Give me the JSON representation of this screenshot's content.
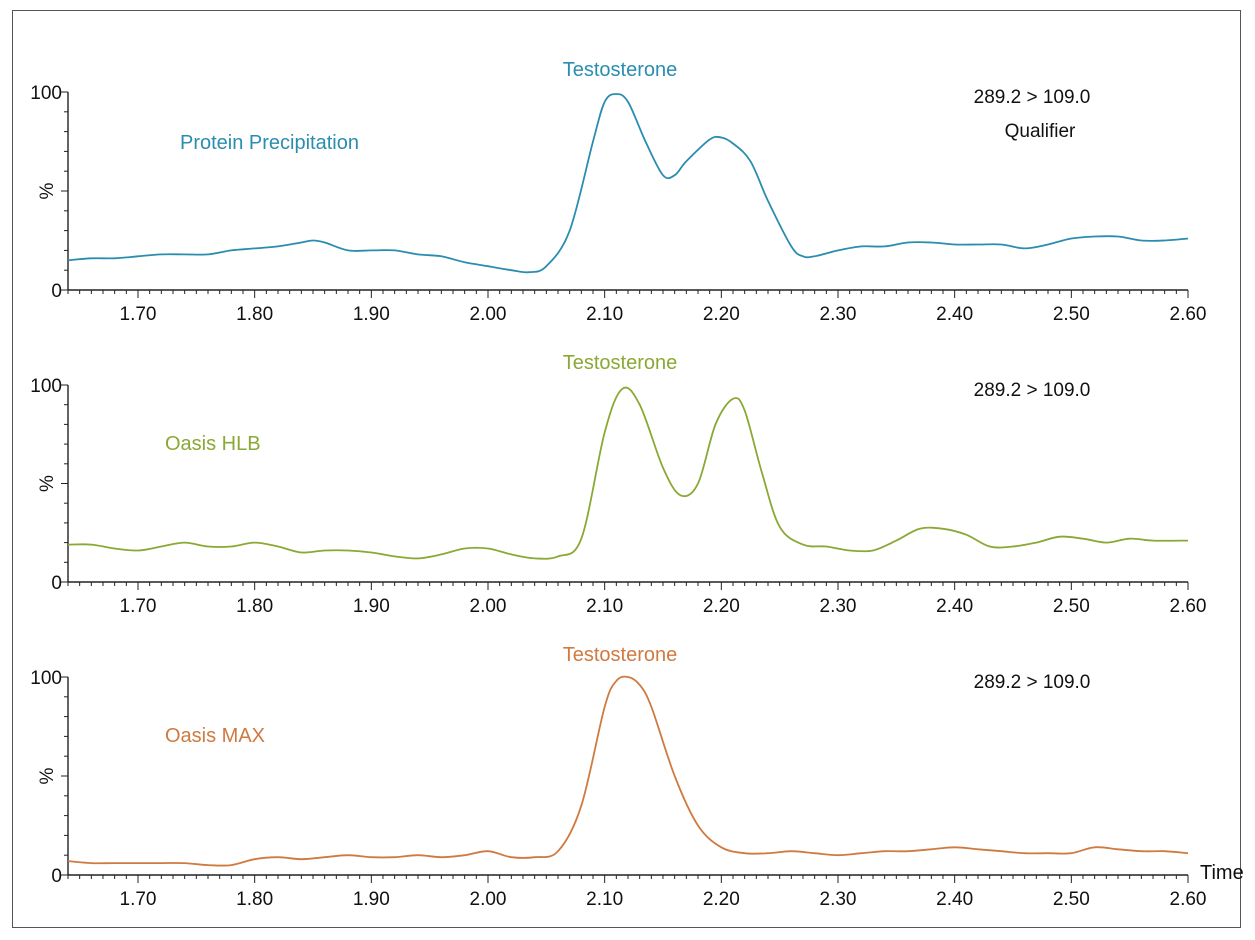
{
  "chart_data": [
    {
      "type": "line",
      "peak_label": "Testosterone",
      "method_label": "Protein Precipitation",
      "transition": "289.2 > 109.0",
      "transition_sub": "Qualifier",
      "ylabel": "%",
      "xlabel": "",
      "color": "#2a8db0",
      "xlim": [
        1.64,
        2.6
      ],
      "ylim": [
        0,
        100
      ],
      "yticks": [
        "0",
        "100"
      ],
      "xticks": [
        "1.70",
        "1.80",
        "1.90",
        "2.00",
        "2.10",
        "2.20",
        "2.30",
        "2.40",
        "2.50",
        "2.60"
      ],
      "x": [
        1.64,
        1.66,
        1.68,
        1.7,
        1.72,
        1.74,
        1.76,
        1.78,
        1.8,
        1.82,
        1.84,
        1.85,
        1.86,
        1.88,
        1.9,
        1.92,
        1.94,
        1.96,
        1.98,
        2.0,
        2.02,
        2.035,
        2.05,
        2.07,
        2.09,
        2.1,
        2.11,
        2.12,
        2.135,
        2.15,
        2.16,
        2.17,
        2.19,
        2.2,
        2.21,
        2.225,
        2.24,
        2.26,
        2.27,
        2.28,
        2.3,
        2.32,
        2.34,
        2.36,
        2.38,
        2.4,
        2.42,
        2.44,
        2.46,
        2.48,
        2.5,
        2.52,
        2.54,
        2.56,
        2.58,
        2.6
      ],
      "values": [
        15,
        16,
        16,
        17,
        18,
        18,
        18,
        20,
        21,
        22,
        24,
        25,
        24,
        20,
        20,
        20,
        18,
        17,
        14,
        12,
        10,
        9,
        12,
        30,
        75,
        95,
        99,
        95,
        75,
        58,
        58,
        65,
        76,
        77,
        74,
        65,
        45,
        22,
        17,
        17,
        20,
        22,
        22,
        24,
        24,
        23,
        23,
        23,
        21,
        23,
        26,
        27,
        27,
        25,
        25,
        26
      ]
    },
    {
      "type": "line",
      "peak_label": "Testosterone",
      "method_label": "Oasis HLB",
      "transition": "289.2 > 109.0",
      "ylabel": "%",
      "xlabel": "",
      "color": "#8aa834",
      "xlim": [
        1.64,
        2.6
      ],
      "ylim": [
        0,
        100
      ],
      "yticks": [
        "0",
        "100"
      ],
      "xticks": [
        "1.70",
        "1.80",
        "1.90",
        "2.00",
        "2.10",
        "2.20",
        "2.30",
        "2.40",
        "2.50",
        "2.60"
      ],
      "x": [
        1.64,
        1.66,
        1.68,
        1.7,
        1.72,
        1.74,
        1.76,
        1.78,
        1.8,
        1.82,
        1.84,
        1.86,
        1.88,
        1.9,
        1.92,
        1.94,
        1.96,
        1.98,
        2.0,
        2.02,
        2.04,
        2.06,
        2.08,
        2.1,
        2.115,
        2.13,
        2.15,
        2.165,
        2.18,
        2.195,
        2.21,
        2.22,
        2.235,
        2.25,
        2.27,
        2.29,
        2.31,
        2.33,
        2.35,
        2.37,
        2.39,
        2.41,
        2.43,
        2.45,
        2.47,
        2.49,
        2.51,
        2.53,
        2.55,
        2.57,
        2.6
      ],
      "values": [
        19,
        19,
        17,
        16,
        18,
        20,
        18,
        18,
        20,
        18,
        15,
        16,
        16,
        15,
        13,
        12,
        14,
        17,
        17,
        14,
        12,
        13,
        22,
        76,
        98,
        90,
        58,
        44,
        50,
        80,
        93,
        87,
        55,
        28,
        19,
        18,
        16,
        16,
        21,
        27,
        27,
        24,
        18,
        18,
        20,
        23,
        22,
        20,
        22,
        21,
        21
      ]
    },
    {
      "type": "line",
      "peak_label": "Testosterone",
      "method_label": "Oasis MAX",
      "transition": "289.2 > 109.0",
      "ylabel": "%",
      "xlabel": "Time",
      "color": "#cf7a40",
      "xlim": [
        1.64,
        2.6
      ],
      "ylim": [
        0,
        100
      ],
      "yticks": [
        "0",
        "100"
      ],
      "xticks": [
        "1.70",
        "1.80",
        "1.90",
        "2.00",
        "2.10",
        "2.20",
        "2.30",
        "2.40",
        "2.50",
        "2.60"
      ],
      "x": [
        1.64,
        1.66,
        1.68,
        1.7,
        1.72,
        1.74,
        1.76,
        1.78,
        1.8,
        1.82,
        1.84,
        1.86,
        1.88,
        1.9,
        1.92,
        1.94,
        1.96,
        1.98,
        2.0,
        2.02,
        2.04,
        2.06,
        2.08,
        2.1,
        2.11,
        2.12,
        2.13,
        2.14,
        2.16,
        2.18,
        2.2,
        2.22,
        2.24,
        2.26,
        2.28,
        2.3,
        2.32,
        2.34,
        2.36,
        2.38,
        2.4,
        2.42,
        2.44,
        2.46,
        2.48,
        2.5,
        2.52,
        2.54,
        2.56,
        2.58,
        2.6
      ],
      "values": [
        7,
        6,
        6,
        6,
        6,
        6,
        5,
        5,
        8,
        9,
        8,
        9,
        10,
        9,
        9,
        10,
        9,
        10,
        12,
        9,
        9,
        12,
        35,
        85,
        98,
        100,
        96,
        85,
        50,
        25,
        14,
        11,
        11,
        12,
        11,
        10,
        11,
        12,
        12,
        13,
        14,
        13,
        12,
        11,
        11,
        11,
        14,
        13,
        12,
        12,
        11
      ]
    }
  ]
}
